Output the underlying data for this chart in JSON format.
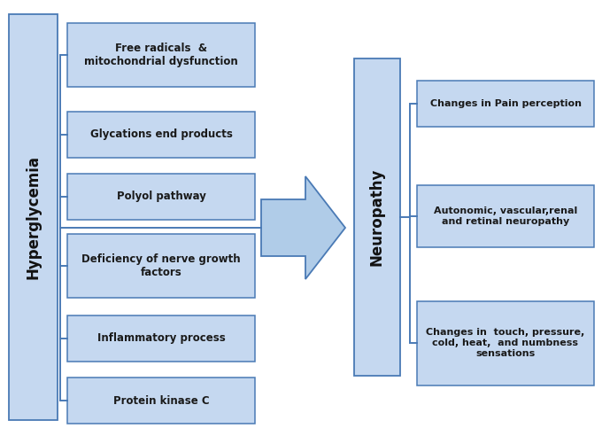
{
  "fig_width": 6.8,
  "fig_height": 4.92,
  "dpi": 100,
  "bg_color": "#ffffff",
  "box_fill": "#c5d8f0",
  "box_edge": "#4a7ab5",
  "box_text_color": "#1a1a1a",
  "left_label": "Hyperglycemia",
  "middle_label": "Neuropathy",
  "left_boxes": [
    "Free radicals  &\nmitochondrial dysfunction",
    "Glycations end products",
    "Polyol pathway",
    "Deficiency of nerve growth\nfactors",
    "Inflammatory process",
    "Protein kinase C"
  ],
  "right_boxes": [
    "Changes in Pain perception",
    "Autonomic, vascular,renal\nand retinal neuropathy",
    "Changes in  touch, pressure,\ncold, heat,  and numbness\nsensations"
  ],
  "bracket_color": "#4a7ab5",
  "label_box_fill": "#c5d8f0",
  "label_box_edge": "#4a7ab5",
  "arrow_fill": "#b0cce8",
  "arrow_edge": "#4a7ab5"
}
